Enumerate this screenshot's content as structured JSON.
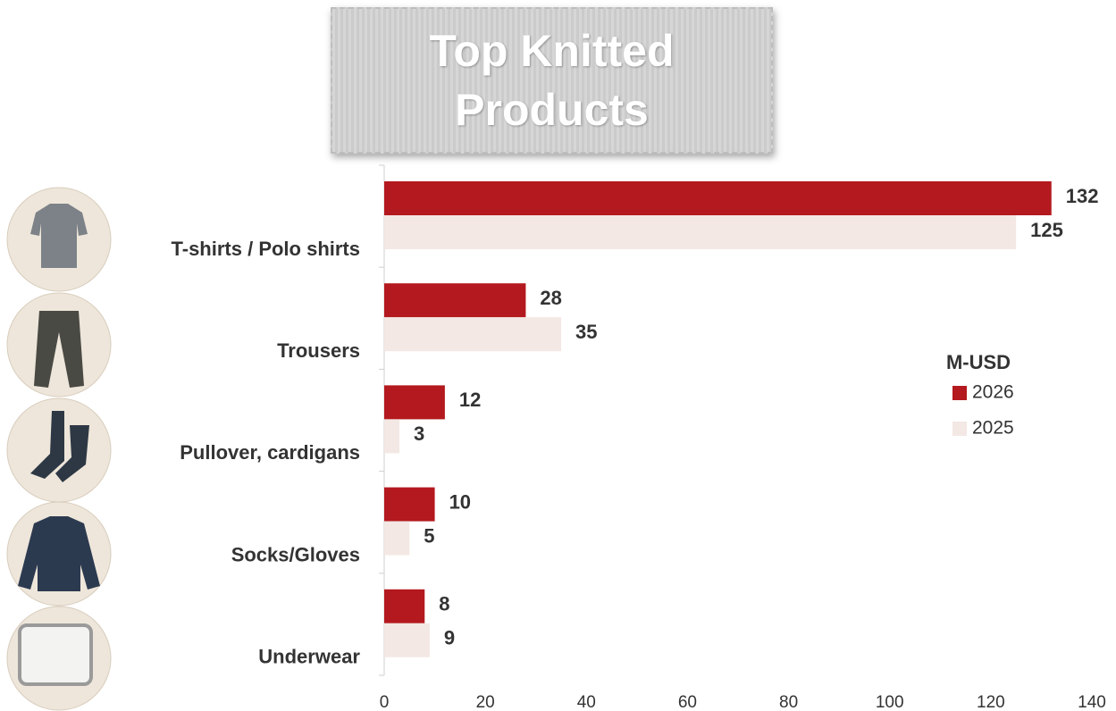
{
  "chart_data": {
    "type": "hbar",
    "title": "Top Knitted Products",
    "categories": [
      "T-shirts / Polo shirts",
      "Trousers",
      "Pullover, cardigans",
      "Socks/Gloves",
      "Underwear"
    ],
    "series": [
      {
        "name": "2026",
        "color": "#b3191e",
        "values": [
          132,
          28,
          12,
          10,
          8
        ]
      },
      {
        "name": "2025",
        "color": "#f3e8e4",
        "values": [
          125,
          35,
          3,
          5,
          9
        ]
      }
    ],
    "legend_title": "M-USD",
    "legend": "right",
    "xlim": [
      0,
      140
    ],
    "xticks": [
      0,
      20,
      40,
      60,
      80,
      100,
      120,
      140
    ]
  }
}
